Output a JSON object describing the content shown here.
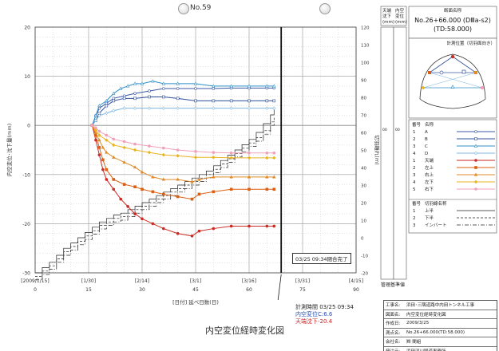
{
  "sheet_no": "No.59",
  "completion_note": "03/25 09:34閉合完了",
  "measure_note": {
    "time": "計測時間 03/25 09:34",
    "conv": "内空変位C:6.6",
    "crown": "天端沈下-20.4"
  },
  "chart_title": "内空変位経時変化図",
  "colors": {
    "A": "#3c5aa8",
    "B": "#2f4f9c",
    "C": "#2f8fc9",
    "D": "#7fb5e0",
    "crown": "#cc2a24",
    "left_top": "#d95f12",
    "right_top": "#e08a2a",
    "left_bottom": "#e8b420",
    "right_bottom": "#f0a0b8"
  },
  "right_panel": {
    "head": {
      "col1": "天端",
      "col1b": "沈下",
      "col1c": "(mm)",
      "col2": "内空",
      "col2b": "変位",
      "col2c": "(mm)"
    },
    "section_label": "断面名称",
    "section_name": "No.26+66.000 (DⅢa-s2)",
    "td": "(TD:58.000)",
    "position_title": "計測位置（切羽面向き）",
    "side_val_1": "00",
    "side_val_2": "00",
    "legend_head_no": "番号",
    "legend_head_name": "名称",
    "lines": [
      {
        "no": "1",
        "name": "A"
      },
      {
        "no": "2",
        "name": "B"
      },
      {
        "no": "3",
        "name": "C"
      },
      {
        "no": "4",
        "name": "D"
      },
      {
        "no": "1",
        "name": "天端"
      },
      {
        "no": "2",
        "name": "左上"
      },
      {
        "no": "3",
        "name": "右上"
      },
      {
        "no": "4",
        "name": "左下"
      },
      {
        "no": "5",
        "name": "右下"
      }
    ],
    "face_head_no": "番号",
    "face_head_name": "切羽線名称",
    "face_lines": [
      {
        "no": "1",
        "name": "上半"
      },
      {
        "no": "2",
        "name": "下半"
      },
      {
        "no": "3",
        "name": "インバート"
      }
    ],
    "baseline_label": "管理基準値"
  },
  "project_info": [
    {
      "k": "工事名:",
      "v": "浜田･三隅道路中内田トンネル工事"
    },
    {
      "k": "図面名:",
      "v": "内空変位経時変化図"
    },
    {
      "k": "作成日:",
      "v": "2009/3/25"
    },
    {
      "k": "測点名:",
      "v": "No.26+66.000(TD:58.000)"
    },
    {
      "k": "会社名:",
      "v": "㈱ 間組"
    },
    {
      "k": "発注元:",
      "v": "浜田河川国道事務所"
    }
  ],
  "chart_data": {
    "type": "line",
    "title": "内空変位経時変化図",
    "xlabel": "[日付] 延べ日数(日)",
    "ylabel": "内空変位･沈下量(mm)",
    "y2label": "切羽離れ(m)",
    "xlim": [
      0,
      90
    ],
    "ylim": [
      -30,
      20
    ],
    "y2lim": [
      -20,
      120
    ],
    "x_ticks": [
      0,
      15,
      30,
      45,
      60,
      75,
      90
    ],
    "date_ticks": [
      {
        "x": 0,
        "label": "[2009/1/15]"
      },
      {
        "x": 15,
        "label": "[1/30]"
      },
      {
        "x": 30,
        "label": "[2/14]"
      },
      {
        "x": 45,
        "label": "[3/1]"
      },
      {
        "x": 60,
        "label": "[3/16]"
      },
      {
        "x": 75,
        "label": "[3/31]"
      },
      {
        "x": 90,
        "label": "[4/15]"
      }
    ],
    "y_ticks": [
      20,
      10,
      0,
      -10,
      -20,
      -30
    ],
    "y2_ticks": [
      120,
      110,
      100,
      90,
      80,
      70,
      60,
      50,
      40,
      30,
      20,
      10,
      0,
      -10,
      -20
    ],
    "grid": true,
    "current_day": 69,
    "series": [
      {
        "name": "A",
        "key": "A",
        "marker": "circle",
        "points": [
          [
            16,
            0
          ],
          [
            17,
            2
          ],
          [
            18,
            3.5
          ],
          [
            20,
            4.5
          ],
          [
            22,
            5.5
          ],
          [
            25,
            6
          ],
          [
            28,
            6.5
          ],
          [
            32,
            7
          ],
          [
            36,
            7.5
          ],
          [
            40,
            7.5
          ],
          [
            45,
            7.5
          ],
          [
            50,
            7.5
          ],
          [
            55,
            7.6
          ],
          [
            60,
            7.6
          ],
          [
            65,
            7.6
          ],
          [
            67,
            7.6
          ]
        ]
      },
      {
        "name": "B",
        "key": "B",
        "marker": "square",
        "points": [
          [
            16,
            0
          ],
          [
            17,
            1
          ],
          [
            18,
            2.5
          ],
          [
            20,
            4
          ],
          [
            22,
            5
          ],
          [
            25,
            5.5
          ],
          [
            28,
            5.5
          ],
          [
            32,
            5.8
          ],
          [
            36,
            5.8
          ],
          [
            40,
            5.5
          ],
          [
            45,
            5
          ],
          [
            50,
            5
          ],
          [
            55,
            5
          ],
          [
            60,
            5
          ],
          [
            65,
            5
          ],
          [
            67,
            5
          ]
        ]
      },
      {
        "name": "C",
        "key": "C",
        "marker": "triangle",
        "points": [
          [
            16,
            0
          ],
          [
            17,
            2
          ],
          [
            18,
            4
          ],
          [
            20,
            5
          ],
          [
            22,
            6.5
          ],
          [
            24,
            7.5
          ],
          [
            26,
            8
          ],
          [
            28,
            8.5
          ],
          [
            30,
            8.5
          ],
          [
            33,
            9
          ],
          [
            36,
            8.5
          ],
          [
            40,
            8.5
          ],
          [
            45,
            8.5
          ],
          [
            50,
            8
          ],
          [
            55,
            8
          ],
          [
            60,
            8
          ],
          [
            65,
            8
          ],
          [
            67,
            8
          ]
        ]
      },
      {
        "name": "D",
        "key": "D",
        "marker": "diamond",
        "points": [
          [
            16,
            0
          ],
          [
            17,
            1
          ],
          [
            18,
            2
          ],
          [
            20,
            2.5
          ],
          [
            22,
            3
          ],
          [
            25,
            3.5
          ],
          [
            28,
            3.5
          ],
          [
            32,
            3.5
          ],
          [
            36,
            3.5
          ],
          [
            40,
            3.5
          ],
          [
            45,
            3.5
          ],
          [
            50,
            3.5
          ],
          [
            55,
            3.5
          ],
          [
            60,
            3.5
          ],
          [
            65,
            3.5
          ],
          [
            67,
            3.5
          ]
        ]
      },
      {
        "name": "天端",
        "key": "crown",
        "marker": "circle-filled",
        "points": [
          [
            16,
            0
          ],
          [
            17,
            -3
          ],
          [
            18,
            -6
          ],
          [
            19,
            -9
          ],
          [
            20,
            -11
          ],
          [
            22,
            -13
          ],
          [
            24,
            -15
          ],
          [
            26,
            -16.5
          ],
          [
            28,
            -18
          ],
          [
            30,
            -19
          ],
          [
            33,
            -20
          ],
          [
            36,
            -21
          ],
          [
            40,
            -22
          ],
          [
            44,
            -22.5
          ],
          [
            46,
            -21.5
          ],
          [
            50,
            -21
          ],
          [
            55,
            -20.5
          ],
          [
            60,
            -20.5
          ],
          [
            65,
            -20.5
          ],
          [
            67,
            -20.5
          ]
        ]
      },
      {
        "name": "左上",
        "key": "left_top",
        "marker": "square-filled",
        "points": [
          [
            16,
            0
          ],
          [
            17,
            -2
          ],
          [
            18,
            -4.5
          ],
          [
            19,
            -7
          ],
          [
            20,
            -9
          ],
          [
            22,
            -11
          ],
          [
            25,
            -12
          ],
          [
            28,
            -12.5
          ],
          [
            30,
            -13
          ],
          [
            33,
            -13.5
          ],
          [
            36,
            -14
          ],
          [
            40,
            -14.5
          ],
          [
            44,
            -15
          ],
          [
            46,
            -14
          ],
          [
            50,
            -13.5
          ],
          [
            55,
            -13
          ],
          [
            60,
            -13
          ],
          [
            65,
            -13
          ],
          [
            67,
            -13
          ]
        ]
      },
      {
        "name": "右上",
        "key": "right_top",
        "marker": "triangle-filled",
        "points": [
          [
            16,
            0
          ],
          [
            17,
            -1.5
          ],
          [
            18,
            -3
          ],
          [
            19,
            -4.5
          ],
          [
            20,
            -5.5
          ],
          [
            22,
            -6.5
          ],
          [
            25,
            -7.5
          ],
          [
            28,
            -8.5
          ],
          [
            30,
            -9.5
          ],
          [
            33,
            -10.5
          ],
          [
            36,
            -11
          ],
          [
            40,
            -11
          ],
          [
            44,
            -11.5
          ],
          [
            46,
            -11
          ],
          [
            50,
            -10.5
          ],
          [
            55,
            -10.5
          ],
          [
            60,
            -10.5
          ],
          [
            65,
            -10.5
          ],
          [
            67,
            -10.5
          ]
        ]
      },
      {
        "name": "左下",
        "key": "left_bottom",
        "marker": "diamond-filled",
        "points": [
          [
            16,
            0
          ],
          [
            17,
            -1
          ],
          [
            18,
            -2
          ],
          [
            20,
            -3
          ],
          [
            22,
            -4
          ],
          [
            25,
            -4.5
          ],
          [
            28,
            -5
          ],
          [
            32,
            -5.5
          ],
          [
            36,
            -6
          ],
          [
            40,
            -6.2
          ],
          [
            45,
            -6.5
          ],
          [
            50,
            -6.5
          ],
          [
            55,
            -6.6
          ],
          [
            60,
            -6.6
          ],
          [
            65,
            -6.6
          ],
          [
            67,
            -6.6
          ]
        ]
      },
      {
        "name": "右下",
        "key": "right_bottom",
        "marker": "circle-filled",
        "points": [
          [
            16,
            0
          ],
          [
            17,
            -0.5
          ],
          [
            18,
            -1.2
          ],
          [
            20,
            -2
          ],
          [
            22,
            -2.8
          ],
          [
            25,
            -3.3
          ],
          [
            28,
            -3.8
          ],
          [
            32,
            -4.2
          ],
          [
            36,
            -4.6
          ],
          [
            40,
            -5
          ],
          [
            45,
            -5.3
          ],
          [
            50,
            -5.5
          ],
          [
            55,
            -5.6
          ],
          [
            60,
            -5.6
          ],
          [
            65,
            -5.6
          ],
          [
            67,
            -5.6
          ]
        ]
      }
    ],
    "face_lines": [
      {
        "name": "上半",
        "style": "solid",
        "steps": [
          [
            0,
            -20
          ],
          [
            2,
            -17
          ],
          [
            4,
            -14
          ],
          [
            6,
            -10
          ],
          [
            8,
            -6
          ],
          [
            10,
            -3
          ],
          [
            12,
            0
          ],
          [
            14,
            3
          ],
          [
            16,
            6
          ],
          [
            18,
            9
          ],
          [
            20,
            11
          ],
          [
            22,
            13
          ],
          [
            24,
            14
          ],
          [
            26,
            16
          ],
          [
            28,
            18
          ],
          [
            30,
            20
          ],
          [
            32,
            22
          ],
          [
            34,
            24
          ],
          [
            36,
            26
          ],
          [
            38,
            28
          ],
          [
            40,
            30
          ],
          [
            42,
            32
          ],
          [
            44,
            34
          ],
          [
            46,
            36
          ],
          [
            48,
            38
          ],
          [
            50,
            41
          ],
          [
            52,
            44
          ],
          [
            54,
            47
          ],
          [
            56,
            50
          ],
          [
            58,
            53
          ],
          [
            60,
            56
          ],
          [
            62,
            60
          ],
          [
            64,
            65
          ],
          [
            66,
            70
          ],
          [
            67,
            73
          ]
        ]
      },
      {
        "name": "下半",
        "style": "dashed",
        "steps": [
          [
            0,
            -22
          ],
          [
            2,
            -19
          ],
          [
            4,
            -16
          ],
          [
            6,
            -12
          ],
          [
            8,
            -8
          ],
          [
            10,
            -5
          ],
          [
            12,
            -2
          ],
          [
            14,
            1
          ],
          [
            16,
            4
          ],
          [
            18,
            7
          ],
          [
            20,
            9
          ],
          [
            22,
            11
          ],
          [
            24,
            12
          ],
          [
            26,
            14
          ],
          [
            28,
            16
          ],
          [
            30,
            18
          ],
          [
            32,
            20
          ],
          [
            34,
            22
          ],
          [
            36,
            24
          ],
          [
            38,
            26
          ],
          [
            40,
            28
          ],
          [
            42,
            30
          ],
          [
            44,
            32
          ],
          [
            46,
            34
          ],
          [
            48,
            36
          ],
          [
            50,
            39
          ],
          [
            52,
            42
          ],
          [
            54,
            45
          ],
          [
            56,
            48
          ],
          [
            58,
            51
          ],
          [
            60,
            54
          ],
          [
            62,
            57
          ],
          [
            64,
            61
          ],
          [
            66,
            66
          ],
          [
            67,
            69
          ]
        ]
      },
      {
        "name": "インバート",
        "style": "dashdot",
        "steps": [
          [
            0,
            -24
          ],
          [
            2,
            -21
          ],
          [
            4,
            -18
          ],
          [
            6,
            -14
          ],
          [
            8,
            -10
          ],
          [
            10,
            -7
          ],
          [
            12,
            -4
          ],
          [
            14,
            -1
          ],
          [
            16,
            2
          ],
          [
            18,
            5
          ],
          [
            20,
            7
          ],
          [
            22,
            9
          ],
          [
            24,
            10
          ],
          [
            26,
            12
          ],
          [
            28,
            14
          ],
          [
            30,
            16
          ],
          [
            32,
            18
          ],
          [
            34,
            20
          ],
          [
            36,
            22
          ],
          [
            38,
            24
          ],
          [
            40,
            26
          ],
          [
            42,
            28
          ],
          [
            44,
            30
          ],
          [
            46,
            32
          ],
          [
            48,
            34
          ],
          [
            50,
            37
          ],
          [
            52,
            40
          ],
          [
            54,
            43
          ],
          [
            56,
            46
          ],
          [
            58,
            49
          ],
          [
            60,
            52
          ],
          [
            62,
            55
          ],
          [
            64,
            59
          ],
          [
            66,
            64
          ],
          [
            67,
            67
          ]
        ]
      }
    ]
  }
}
